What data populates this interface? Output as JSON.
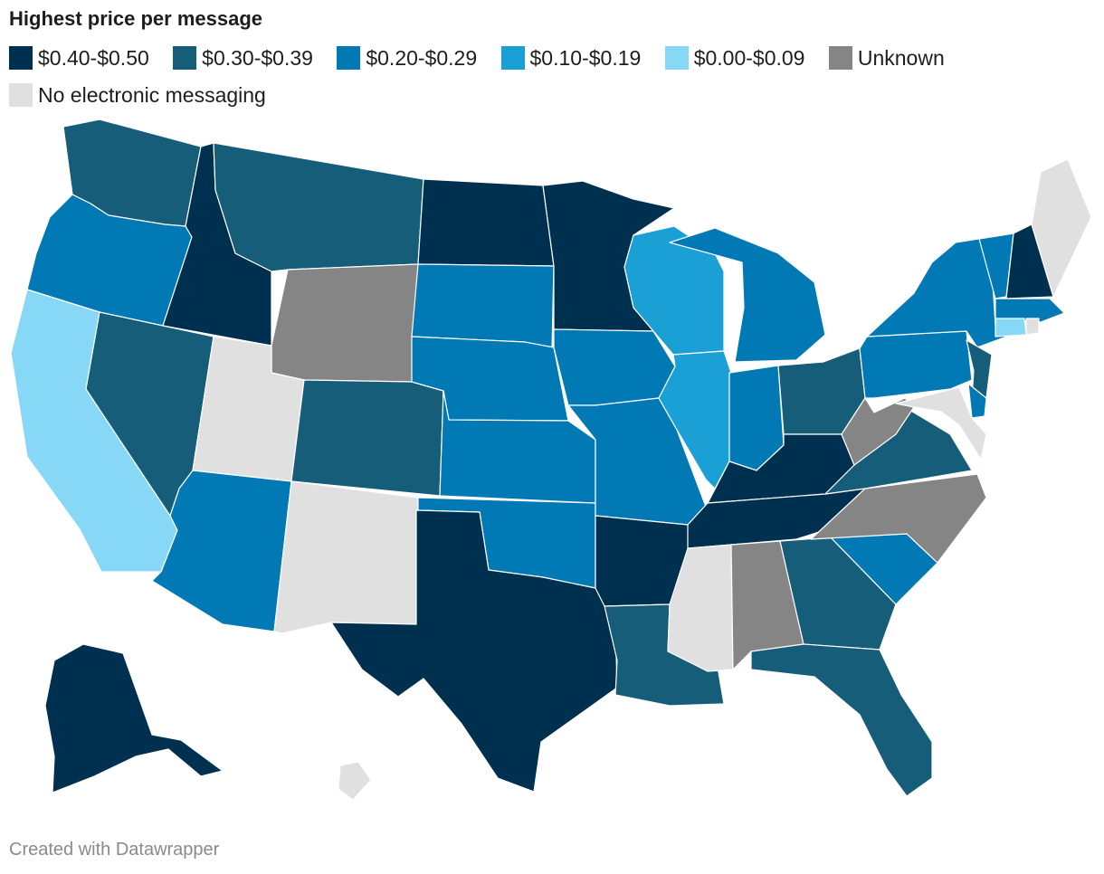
{
  "title": "Highest price per message",
  "legend": [
    {
      "label": "$0.40-$0.50",
      "color": "#00304f"
    },
    {
      "label": "$0.30-$0.39",
      "color": "#155d78"
    },
    {
      "label": "$0.20-$0.29",
      "color": "#0079b5"
    },
    {
      "label": "$0.10-$0.19",
      "color": "#1aa0d5"
    },
    {
      "label": "$0.00-$0.09",
      "color": "#87d8f7"
    },
    {
      "label": "Unknown",
      "color": "#858585"
    },
    {
      "label": "No electronic messaging",
      "color": "#e0e0e0"
    }
  ],
  "states": {
    "WA": "$0.30-$0.39",
    "OR": "$0.20-$0.29",
    "CA": "$0.00-$0.09",
    "ID": "$0.40-$0.50",
    "NV": "$0.30-$0.39",
    "MT": "$0.30-$0.39",
    "WY": "Unknown",
    "UT": "No electronic messaging",
    "AZ": "$0.20-$0.29",
    "CO": "$0.30-$0.39",
    "NM": "No electronic messaging",
    "ND": "$0.40-$0.50",
    "SD": "$0.20-$0.29",
    "NE": "$0.20-$0.29",
    "KS": "$0.20-$0.29",
    "OK": "$0.20-$0.29",
    "TX": "$0.40-$0.50",
    "MN": "$0.40-$0.50",
    "IA": "$0.20-$0.29",
    "MO": "$0.20-$0.29",
    "AR": "$0.40-$0.50",
    "LA": "$0.30-$0.39",
    "WI": "$0.10-$0.19",
    "IL": "$0.10-$0.19",
    "MI": "$0.20-$0.29",
    "IN": "$0.20-$0.29",
    "OH": "$0.30-$0.39",
    "KY": "$0.40-$0.50",
    "TN": "$0.40-$0.50",
    "MS": "No electronic messaging",
    "AL": "Unknown",
    "GA": "$0.30-$0.39",
    "FL": "$0.30-$0.39",
    "SC": "$0.20-$0.29",
    "NC": "Unknown",
    "VA": "$0.30-$0.39",
    "WV": "Unknown",
    "PA": "$0.20-$0.29",
    "NY": "$0.20-$0.29",
    "NJ": "$0.30-$0.39",
    "DE": "$0.20-$0.29",
    "MD": "No electronic messaging",
    "CT": "$0.00-$0.09",
    "RI": "No electronic messaging",
    "MA": "$0.20-$0.29",
    "VT": "$0.20-$0.29",
    "NH": "$0.40-$0.50",
    "ME": "No electronic messaging",
    "AK": "$0.40-$0.50",
    "HI": "No electronic messaging"
  },
  "footer": "Created with Datawrapper"
}
